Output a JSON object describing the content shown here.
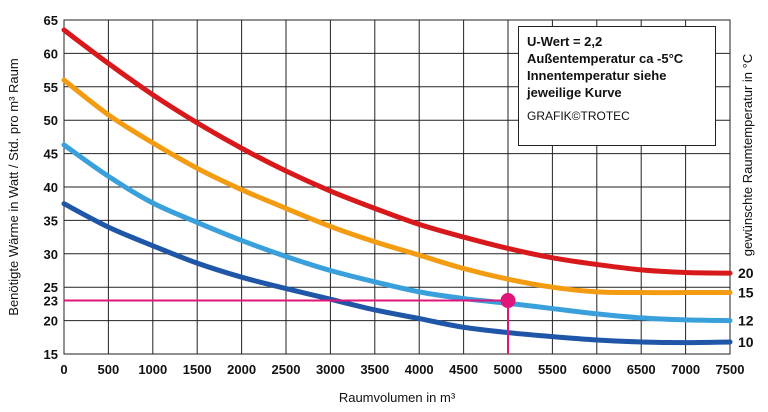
{
  "chart_data": {
    "type": "line",
    "xlabel": "Raumvolumen in m³",
    "ylabel": "Benötigte Wärme in Watt / Std. pro m³ Raum",
    "ylabel_right": "gewünschte Raumtemperatur in °C",
    "xlim": [
      0,
      7500
    ],
    "ylim": [
      15,
      65
    ],
    "x_ticks": [
      "0",
      "500",
      "1000",
      "1500",
      "2000",
      "2500",
      "3000",
      "3500",
      "4000",
      "4500",
      "5000",
      "5500",
      "6000",
      "6500",
      "7000",
      "7500"
    ],
    "y_ticks": [
      "15",
      "20",
      "25",
      "30",
      "35",
      "40",
      "45",
      "50",
      "55",
      "60",
      "65"
    ],
    "grid": true,
    "highlight": {
      "x": 5000,
      "y": 23,
      "x_label": "5000",
      "y_label": "23",
      "color": "#e0157a"
    },
    "info_box": [
      "U-Wert = 2,2",
      "Außentemperatur ca -5°C",
      "Innentemperatur siehe",
      "jeweilige Kurve"
    ],
    "credit": "GRAFIK©TROTEC",
    "series": [
      {
        "name": "20",
        "color": "#d7191c",
        "label_color": "#111111",
        "x": [
          0,
          500,
          1000,
          1500,
          2000,
          2500,
          3000,
          3500,
          4000,
          4500,
          5000,
          5500,
          6000,
          6500,
          7000,
          7500
        ],
        "y": [
          63.5,
          58.5,
          53.8,
          49.6,
          45.8,
          42.4,
          39.4,
          36.8,
          34.4,
          32.5,
          30.8,
          29.4,
          28.4,
          27.6,
          27.2,
          27.1
        ]
      },
      {
        "name": "15",
        "color": "#f39c12",
        "label_color": "#111111",
        "x": [
          0,
          500,
          1000,
          1500,
          2000,
          2500,
          3000,
          3500,
          4000,
          4500,
          5000,
          5500,
          6000,
          6500,
          7000,
          7500
        ],
        "y": [
          56,
          50.8,
          46.6,
          42.8,
          39.6,
          36.8,
          34.1,
          31.8,
          29.8,
          27.8,
          26.2,
          25,
          24.3,
          24.2,
          24.2,
          24.2
        ]
      },
      {
        "name": "12",
        "color": "#3aa0dc",
        "label_color": "#e0157a",
        "x": [
          0,
          500,
          1000,
          1500,
          2000,
          2500,
          3000,
          3500,
          4000,
          4500,
          5000,
          5500,
          6000,
          6500,
          7000,
          7500
        ],
        "y": [
          46.3,
          41.6,
          37.6,
          34.7,
          32,
          29.6,
          27.5,
          25.8,
          24.3,
          23.3,
          22.6,
          21.8,
          21,
          20.4,
          20.1,
          20
        ]
      },
      {
        "name": "10",
        "color": "#1f56a8",
        "label_color": "#111111",
        "x": [
          0,
          500,
          1000,
          1500,
          2000,
          2500,
          3000,
          3500,
          4000,
          4500,
          5000,
          5500,
          6000,
          6500,
          7000,
          7500
        ],
        "y": [
          37.5,
          34,
          31.2,
          28.6,
          26.5,
          24.8,
          23.2,
          21.6,
          20.3,
          19,
          18.2,
          17.6,
          17.1,
          16.8,
          16.7,
          16.8
        ]
      }
    ]
  }
}
